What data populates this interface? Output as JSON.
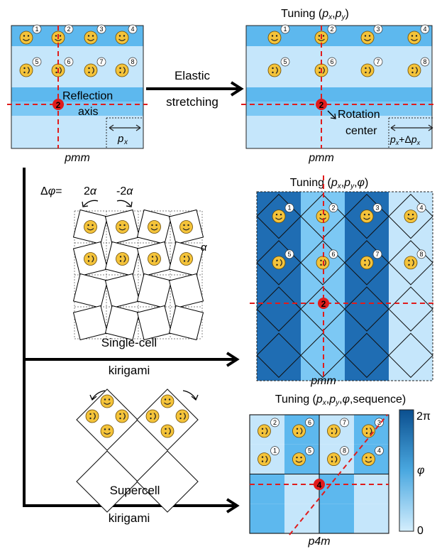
{
  "colors": {
    "light": "#c5e6fb",
    "mid": "#5db8ee",
    "band": "#7cc8f4",
    "dark": "#1f6db3",
    "deep": "#0b4f8f",
    "face": "#f4c33a",
    "dashed": "#e01c1c"
  },
  "panel_a": {
    "reflection_label_1": "Reflection",
    "reflection_label_2": "axis",
    "spacing_label": "p",
    "spacing_sub": "x",
    "group": "pmm",
    "center_number": "2",
    "face_numbers": [
      "1",
      "2",
      "3",
      "4",
      "5",
      "6",
      "7",
      "8"
    ]
  },
  "arrow_elastic": {
    "line1": "Elastic",
    "line2": "stretching"
  },
  "panel_b": {
    "title_prefix": "Tuning (",
    "title_p": "p",
    "title_x": "x",
    "title_comma": ",",
    "title_y": "y",
    "title_suffix": ")",
    "rotation_1": "Rotation",
    "rotation_2": "center",
    "spacing_label": "p",
    "spacing_sub": "x",
    "spacing_plus": "+Δ",
    "group": "pmm",
    "center_number": "2"
  },
  "single_cell": {
    "delta_label": "Δφ=",
    "angle_pos": "2α",
    "angle_neg": "-2α",
    "alpha": "α",
    "caption_1": "Single-cell",
    "caption_2": "kirigami"
  },
  "panel_c": {
    "title": "Tuning (p",
    "title_full": "Tuning (px,py,φ)",
    "group": "pmm",
    "center_number": "2"
  },
  "supercell": {
    "caption_1": "Supercell",
    "caption_2": "kirigami"
  },
  "panel_d": {
    "title_full": "Tuning (px,py,φ,sequence)",
    "group": "p4m",
    "center_number": "4",
    "face_numbers_top": [
      "2",
      "6",
      "7",
      "3"
    ],
    "face_numbers_bottom": [
      "1",
      "5",
      "8",
      "4"
    ]
  },
  "colorbar": {
    "max_label": "2π",
    "min_label": "0",
    "var_label": "φ"
  }
}
